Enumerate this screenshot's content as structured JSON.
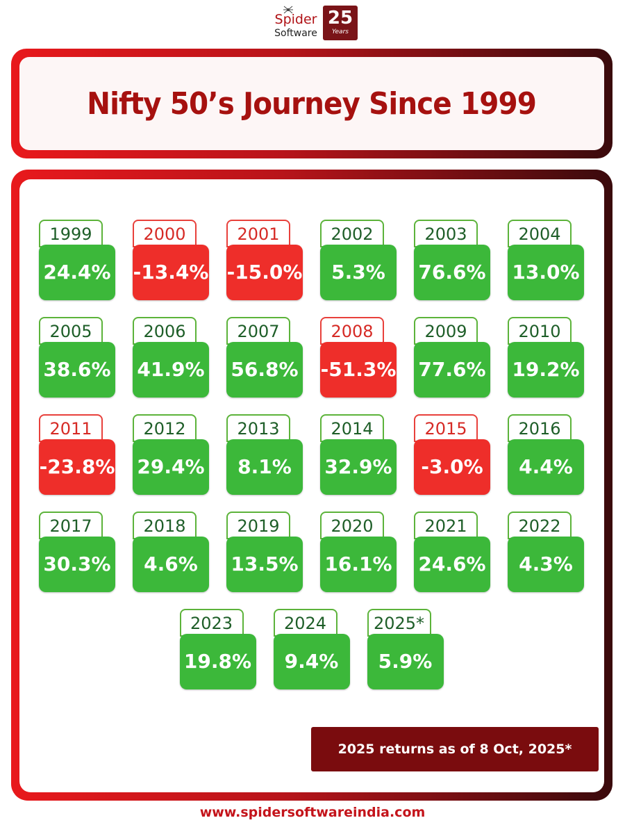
{
  "logo": {
    "name_line1": "Spider",
    "name_line2": "Software",
    "badge_number": "25",
    "badge_text": "Years"
  },
  "title": "Nifty 50’s Journey Since 1999",
  "chart_data": {
    "type": "table",
    "title": "Nifty 50’s Journey Since 1999",
    "categories": [
      "1999",
      "2000",
      "2001",
      "2002",
      "2003",
      "2004",
      "2005",
      "2006",
      "2007",
      "2008",
      "2009",
      "2010",
      "2011",
      "2012",
      "2013",
      "2014",
      "2015",
      "2016",
      "2017",
      "2018",
      "2019",
      "2020",
      "2021",
      "2022",
      "2023",
      "2024",
      "2025*"
    ],
    "value_labels": [
      "24.4%",
      "-13.4%",
      "-15.0%",
      "5.3%",
      "76.6%",
      "13.0%",
      "38.6%",
      "41.9%",
      "56.8%",
      "-51.3%",
      "77.6%",
      "19.2%",
      "-23.8%",
      "29.4%",
      "8.1%",
      "32.9%",
      "-3.0%",
      "4.4%",
      "30.3%",
      "4.6%",
      "13.5%",
      "16.1%",
      "24.6%",
      "4.3%",
      "19.8%",
      "9.4%",
      "5.9%"
    ],
    "values": [
      24.4,
      -13.4,
      -15.0,
      5.3,
      76.6,
      13.0,
      38.6,
      41.9,
      56.8,
      -51.3,
      77.6,
      19.2,
      -23.8,
      29.4,
      8.1,
      32.9,
      -3.0,
      4.4,
      30.3,
      4.6,
      13.5,
      16.1,
      24.6,
      4.3,
      19.8,
      9.4,
      5.9
    ],
    "colors": {
      "positive": "#3cb83a",
      "negative": "#ee2e2a"
    }
  },
  "note": "2025 returns as of 8 Oct, 2025*",
  "website": "www.spidersoftwareindia.com",
  "colors": {
    "brand_red": "#a6110f",
    "dark_red": "#7a0c0e"
  }
}
